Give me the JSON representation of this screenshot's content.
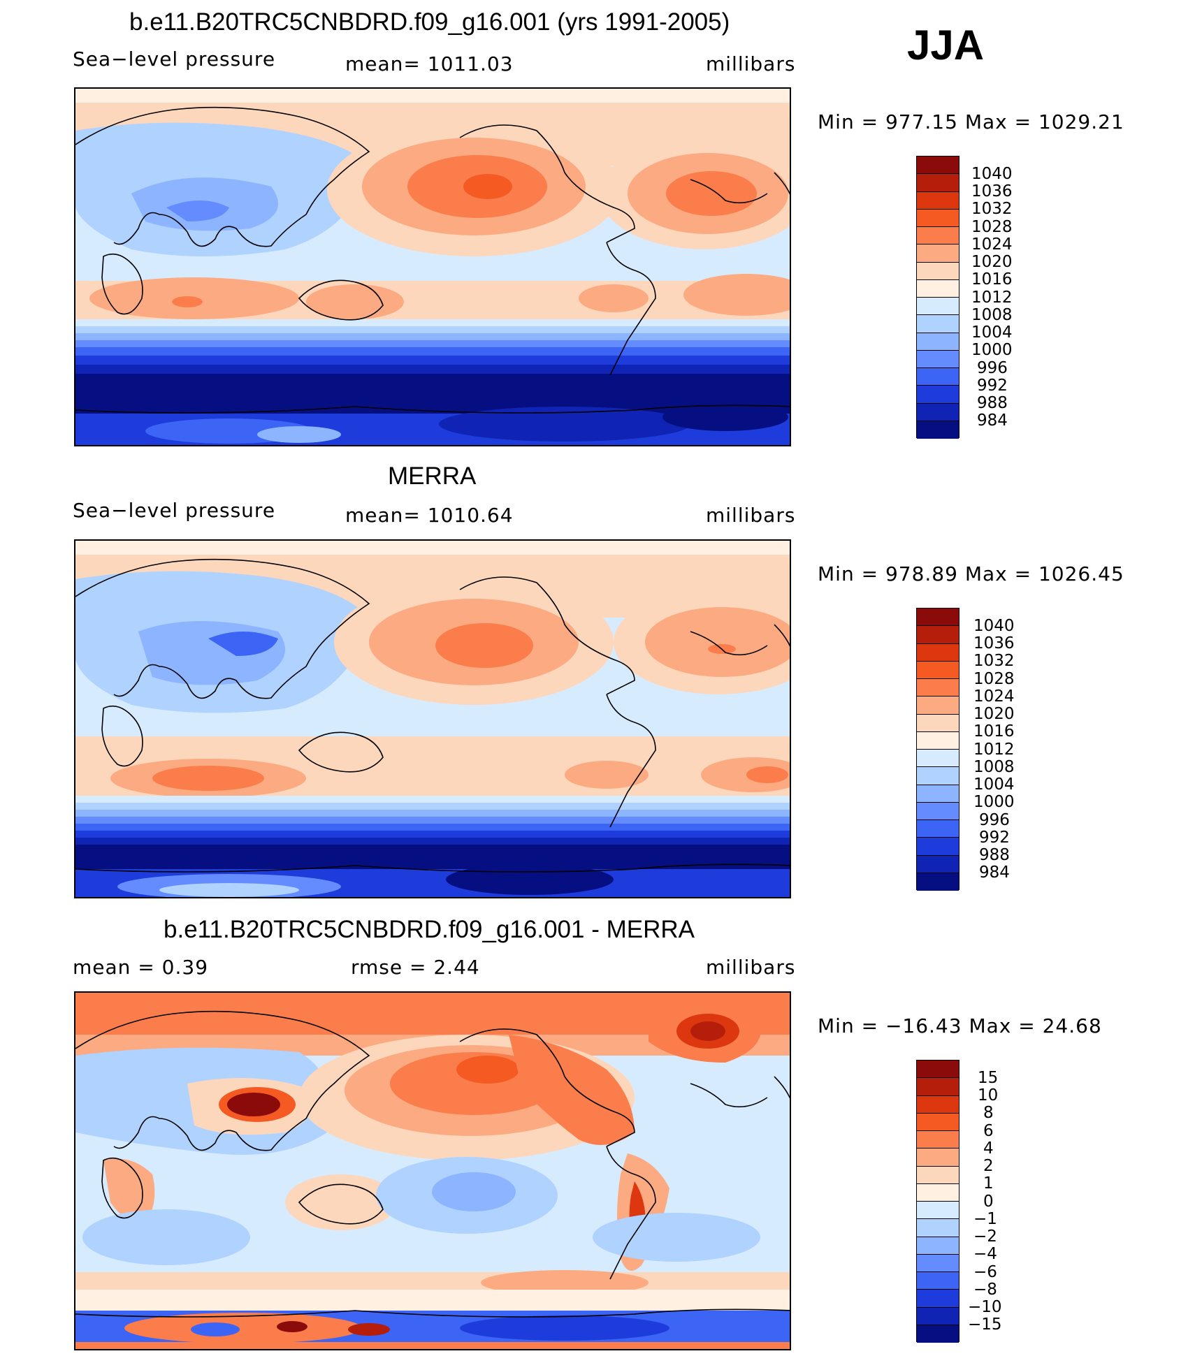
{
  "season": "JJA",
  "panels": [
    {
      "id": "model",
      "title": "b.e11.B20TRC5CNBDRD.f09_g16.001 (yrs 1991-2005)",
      "left_label": "Sea−level pressure",
      "center_label": "mean=  1011.03",
      "right_label": "millibars",
      "minmax": "Min  =  977.15  Max  =  1029.21",
      "colorbar": {
        "colors": [
          "#8b0a0a",
          "#b41e0a",
          "#dc370f",
          "#f55a23",
          "#fa7d4b",
          "#fcaa82",
          "#fdd7bc",
          "#fff0e1",
          "#d7ebff",
          "#afd2ff",
          "#8cb4ff",
          "#648cff",
          "#3c64f5",
          "#1e3cdc",
          "#0f23b4",
          "#050f82"
        ],
        "labels": [
          "1040",
          "1036",
          "1032",
          "1028",
          "1024",
          "1020",
          "1016",
          "1012",
          "1008",
          "1004",
          "1000",
          "996",
          "992",
          "988",
          "984"
        ]
      }
    },
    {
      "id": "obs",
      "title": "MERRA",
      "left_label": "Sea−level pressure",
      "center_label": "mean=  1010.64",
      "right_label": "millibars",
      "minmax": "Min  =  978.89  Max  =  1026.45",
      "colorbar": {
        "colors": [
          "#8b0a0a",
          "#b41e0a",
          "#dc370f",
          "#f55a23",
          "#fa7d4b",
          "#fcaa82",
          "#fdd7bc",
          "#fff0e1",
          "#d7ebff",
          "#afd2ff",
          "#8cb4ff",
          "#648cff",
          "#3c64f5",
          "#1e3cdc",
          "#0f23b4",
          "#050f82"
        ],
        "labels": [
          "1040",
          "1036",
          "1032",
          "1028",
          "1024",
          "1020",
          "1016",
          "1012",
          "1008",
          "1004",
          "1000",
          "996",
          "992",
          "988",
          "984"
        ]
      }
    },
    {
      "id": "diff",
      "title": "b.e11.B20TRC5CNBDRD.f09_g16.001 - MERRA",
      "left_label": "mean  =     0.39",
      "center_label": "rmse  =     2.44",
      "right_label": "millibars",
      "minmax": "Min  =  −16.43  Max  =    24.68",
      "colorbar": {
        "colors": [
          "#8b0a0a",
          "#b41e0a",
          "#dc370f",
          "#f55a23",
          "#fa7d4b",
          "#fcaa82",
          "#fdd7bc",
          "#fff0e1",
          "#d7ebff",
          "#afd2ff",
          "#8cb4ff",
          "#648cff",
          "#3c64f5",
          "#1e3cdc",
          "#0f23b4",
          "#050f82"
        ],
        "labels": [
          "15",
          "10",
          "8",
          "6",
          "4",
          "2",
          "1",
          "0",
          "−1",
          "−2",
          "−4",
          "−6",
          "−8",
          "−10",
          "−15"
        ]
      }
    }
  ]
}
